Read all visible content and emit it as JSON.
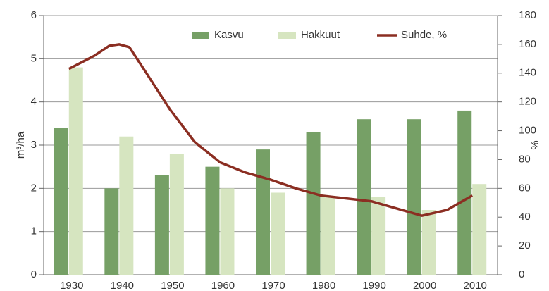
{
  "chart_data": {
    "type": "bar_line",
    "categories": [
      "1930",
      "1940",
      "1950",
      "1960",
      "1970",
      "1980",
      "1990",
      "2000",
      "2010"
    ],
    "series": [
      {
        "name": "Kasvu",
        "color": "#76a066",
        "values": [
          3.4,
          2.0,
          2.3,
          2.5,
          2.9,
          3.3,
          3.6,
          3.6,
          3.8
        ]
      },
      {
        "name": "Hakkuut",
        "color": "#d6e5c0",
        "values": [
          4.8,
          3.2,
          2.8,
          2.0,
          1.9,
          1.8,
          1.8,
          1.5,
          2.1
        ]
      },
      {
        "name": "Suhde, %",
        "color": "#8b2e22",
        "axis": "y2",
        "x": [
          1930,
          1935,
          1938,
          1940,
          1942,
          1945,
          1950,
          1955,
          1960,
          1965,
          1970,
          1975,
          1980,
          1985,
          1990,
          1995,
          2000,
          2005,
          2010
        ],
        "values": [
          143,
          152,
          159,
          160,
          158,
          142,
          115,
          92,
          78,
          71,
          66,
          60,
          55,
          53,
          51,
          46,
          41,
          45,
          55
        ]
      }
    ],
    "ylabel": "m³/ha",
    "y2label": "%",
    "ylim": [
      0,
      6
    ],
    "yticks": [
      0,
      1,
      2,
      3,
      4,
      5,
      6
    ],
    "y2lim": [
      0,
      180
    ],
    "y2ticks": [
      0,
      20,
      40,
      60,
      80,
      100,
      120,
      140,
      160,
      180
    ],
    "grid": true,
    "legend": "top"
  }
}
